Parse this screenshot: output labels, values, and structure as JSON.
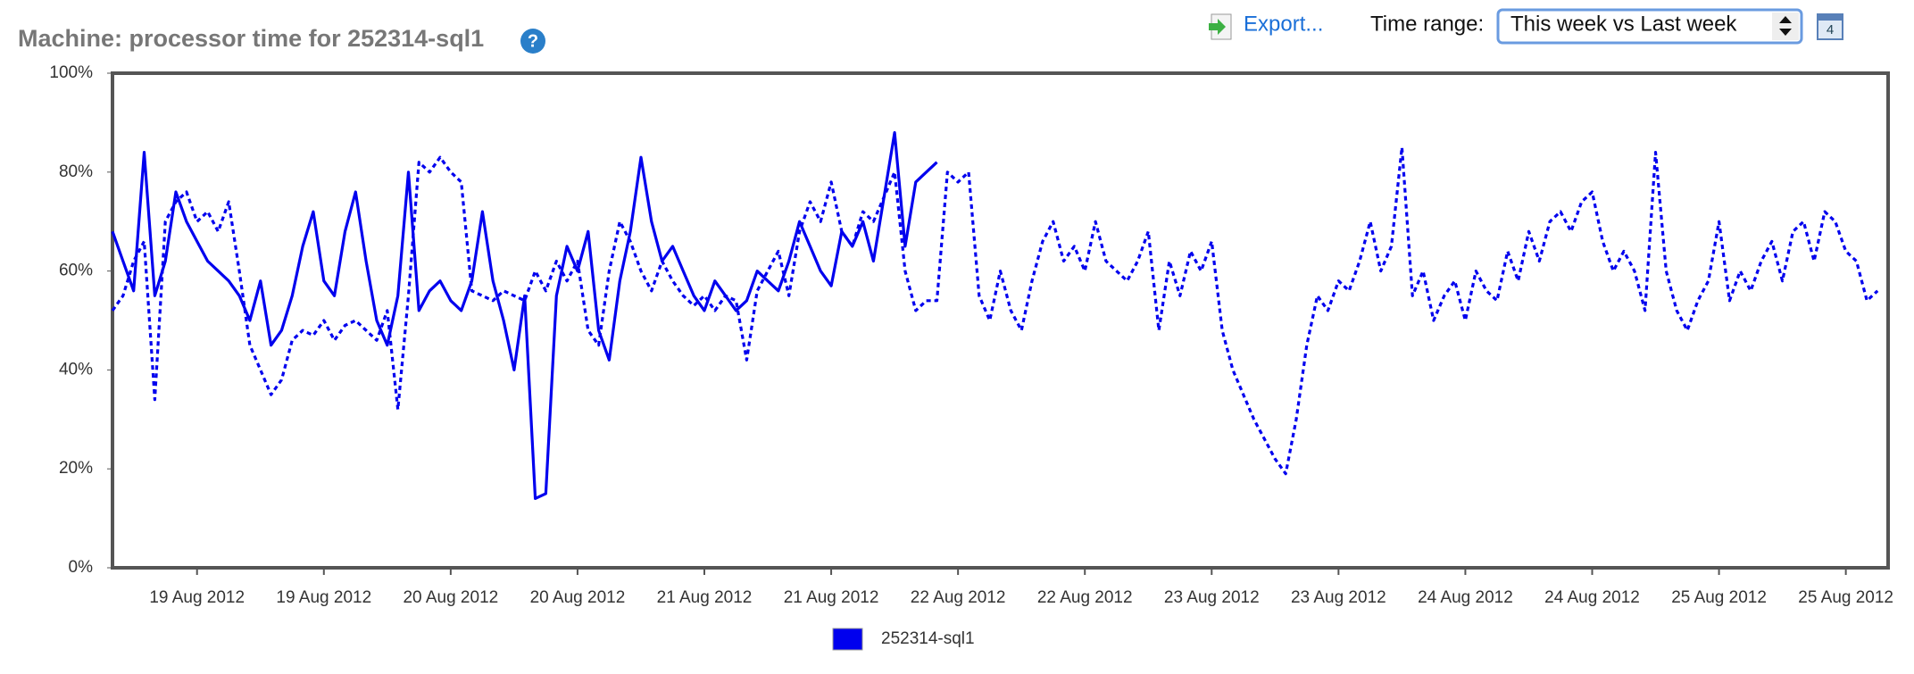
{
  "toolbar": {
    "export": "Export...",
    "time_range_label": "Time range:",
    "time_range_value": "This week vs Last week",
    "calendar_day": "4"
  },
  "chart_data": {
    "type": "line",
    "title": "Machine: processor time for 252314-sql1",
    "x": [
      0,
      1,
      2,
      3,
      4,
      5,
      6,
      7,
      8,
      9,
      10,
      11,
      12,
      13,
      14,
      15,
      16,
      17,
      18,
      19,
      20,
      21,
      22,
      23,
      24,
      25,
      26,
      27,
      28,
      29,
      30,
      31,
      32,
      33,
      34,
      35,
      36,
      37,
      38,
      39,
      40,
      41,
      42,
      43,
      44,
      45,
      46,
      47,
      48,
      49,
      50,
      51,
      52,
      53,
      54,
      55,
      56,
      57,
      58,
      59,
      60,
      61,
      62,
      63,
      64,
      65,
      66,
      67,
      68,
      69,
      70,
      71,
      72,
      73,
      74,
      75,
      76,
      77,
      78,
      79,
      80,
      81,
      82,
      83,
      84,
      85,
      86,
      87,
      88,
      89,
      90,
      91,
      92,
      93,
      94,
      95,
      96,
      97,
      98,
      99,
      100,
      101,
      102,
      103,
      104,
      105,
      106,
      107,
      108,
      109,
      110,
      111,
      112,
      113,
      114,
      115,
      116,
      117,
      118,
      119,
      120,
      121,
      122,
      123,
      124,
      125,
      126,
      127,
      128,
      129,
      130,
      131,
      132,
      133,
      134,
      135,
      136,
      137,
      138,
      139,
      140,
      141,
      142,
      143,
      144,
      145,
      146,
      147,
      148,
      149,
      150,
      151,
      152,
      153,
      154,
      155,
      156,
      157,
      158,
      159,
      160,
      161,
      162,
      163,
      164,
      165,
      166,
      167
    ],
    "series": [
      {
        "name": "252314-sql1",
        "color": "#0000ee",
        "dashed": false,
        "values": [
          68,
          62,
          56,
          84,
          55,
          62,
          76,
          70,
          66,
          62,
          60,
          58,
          55,
          50,
          58,
          45,
          48,
          55,
          65,
          72,
          58,
          55,
          68,
          76,
          62,
          50,
          45,
          55,
          80,
          52,
          56,
          58,
          54,
          52,
          58,
          72,
          58,
          50,
          40,
          55,
          14,
          15,
          55,
          65,
          60,
          68,
          48,
          42,
          58,
          68,
          83,
          70,
          62,
          65,
          60,
          55,
          52,
          58,
          55,
          52,
          54,
          60,
          58,
          56,
          62,
          70,
          65,
          60,
          57,
          68,
          65,
          70,
          62,
          75,
          88,
          65,
          78,
          80,
          82,
          null,
          null,
          null,
          null,
          null,
          null,
          null,
          null,
          null,
          null,
          null,
          null,
          null,
          null,
          null,
          null,
          null,
          null,
          null,
          null,
          null,
          null,
          null,
          null,
          null,
          null,
          null,
          null,
          null,
          null,
          null,
          null,
          null,
          null,
          null,
          null,
          null,
          null,
          null,
          null,
          null,
          null,
          null,
          null,
          null,
          null,
          null,
          null,
          null,
          null,
          null,
          null,
          null,
          null,
          null,
          null,
          null,
          null,
          null,
          null,
          null,
          null,
          null,
          null,
          null,
          null,
          null,
          null,
          null,
          null,
          null,
          null,
          null,
          null,
          null,
          null,
          null,
          null,
          null,
          null,
          null,
          null,
          null,
          null,
          null,
          null,
          null,
          null,
          null
        ]
      },
      {
        "color": "#0000ee",
        "dashed": true,
        "values": [
          52,
          55,
          62,
          66,
          34,
          70,
          74,
          76,
          70,
          72,
          68,
          74,
          60,
          45,
          40,
          35,
          38,
          46,
          48,
          47,
          50,
          46,
          49,
          50,
          48,
          46,
          52,
          32,
          55,
          82,
          80,
          83,
          80,
          78,
          56,
          55,
          54,
          56,
          55,
          54,
          60,
          56,
          62,
          58,
          62,
          48,
          45,
          60,
          70,
          66,
          60,
          56,
          62,
          58,
          55,
          53,
          55,
          52,
          55,
          54,
          42,
          56,
          60,
          64,
          55,
          68,
          74,
          70,
          78,
          68,
          65,
          72,
          70,
          75,
          80,
          60,
          52,
          54,
          54,
          80,
          78,
          80,
          55,
          50,
          60,
          52,
          48,
          58,
          66,
          70,
          62,
          65,
          60,
          70,
          62,
          60,
          58,
          62,
          68,
          48,
          62,
          55,
          64,
          60,
          66,
          48,
          40,
          35,
          30,
          26,
          22,
          19,
          30,
          45,
          55,
          52,
          58,
          56,
          62,
          70,
          60,
          65,
          85,
          55,
          60,
          50,
          55,
          58,
          50,
          60,
          56,
          54,
          64,
          58,
          68,
          62,
          70,
          72,
          68,
          74,
          76,
          66,
          60,
          64,
          60,
          52,
          84,
          60,
          52,
          48,
          54,
          58,
          70,
          54,
          60,
          56,
          62,
          66,
          58,
          68,
          70,
          62,
          72,
          70,
          64,
          62,
          54,
          56
        ]
      }
    ],
    "xlim": [
      0,
      168
    ],
    "xticks": [
      {
        "value": 8,
        "label": "19 Aug 2012"
      },
      {
        "value": 20,
        "label": "19 Aug 2012"
      },
      {
        "value": 32,
        "label": "20 Aug 2012"
      },
      {
        "value": 44,
        "label": "20 Aug 2012"
      },
      {
        "value": 56,
        "label": "21 Aug 2012"
      },
      {
        "value": 68,
        "label": "21 Aug 2012"
      },
      {
        "value": 80,
        "label": "22 Aug 2012"
      },
      {
        "value": 92,
        "label": "22 Aug 2012"
      },
      {
        "value": 104,
        "label": "23 Aug 2012"
      },
      {
        "value": 116,
        "label": "23 Aug 2012"
      },
      {
        "value": 128,
        "label": "24 Aug 2012"
      },
      {
        "value": 140,
        "label": "24 Aug 2012"
      },
      {
        "value": 152,
        "label": "25 Aug 2012"
      },
      {
        "value": 164,
        "label": "25 Aug 2012"
      }
    ],
    "ylim": [
      0,
      100
    ],
    "yticks": [
      {
        "value": 0,
        "label": "0%"
      },
      {
        "value": 20,
        "label": "20%"
      },
      {
        "value": 40,
        "label": "40%"
      },
      {
        "value": 60,
        "label": "60%"
      },
      {
        "value": 80,
        "label": "80%"
      },
      {
        "value": 100,
        "label": "100%"
      }
    ]
  }
}
